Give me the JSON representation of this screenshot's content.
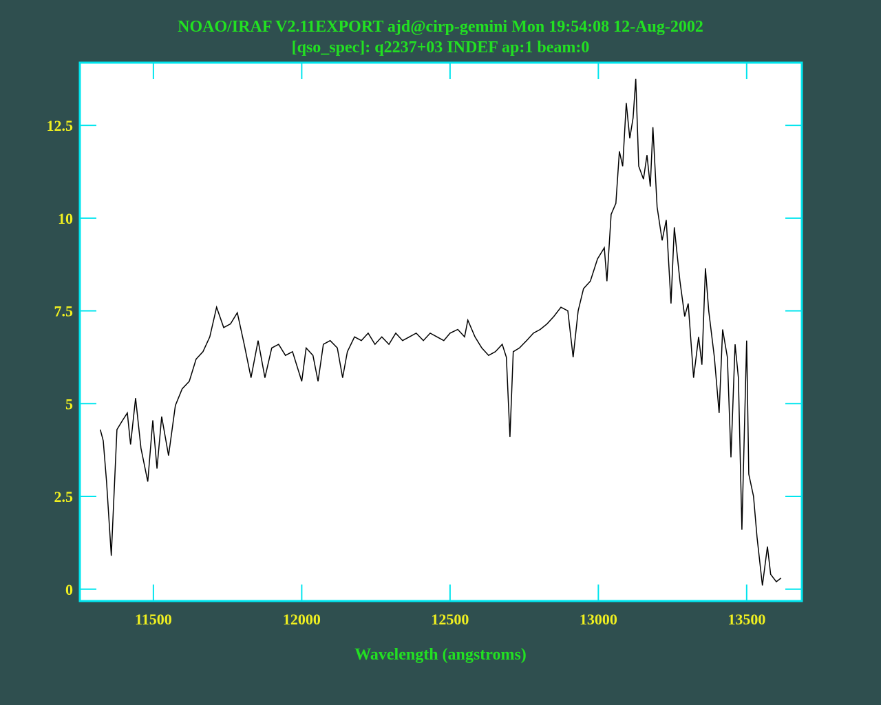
{
  "chart_data": {
    "type": "line",
    "title": "NOAO/IRAF V2.11EXPORT ajd@cirp-gemini Mon 19:54:08 12-Aug-2002",
    "subtitle": "[qso_spec]: q2237+03 INDEF ap:1 beam:0",
    "xlabel": "Wavelength (angstroms)",
    "color": "#000000",
    "xlim": [
      11252,
      13686
    ],
    "ylim": [
      -0.32,
      14.19
    ],
    "xticks": [
      11500,
      12000,
      12500,
      13000,
      13500
    ],
    "yticks": [
      0,
      2.5,
      5,
      7.5,
      10,
      12.5
    ],
    "x": [
      11321,
      11331,
      11342,
      11358,
      11365,
      11377,
      11396,
      11412,
      11423,
      11440,
      11458,
      11481,
      11498,
      11512,
      11528,
      11551,
      11574,
      11597,
      11621,
      11644,
      11667,
      11690,
      11713,
      11737,
      11760,
      11783,
      11806,
      11829,
      11853,
      11876,
      11899,
      11922,
      11945,
      11969,
      12000,
      12015,
      12038,
      12055,
      12073,
      12096,
      12120,
      12138,
      12154,
      12178,
      12201,
      12224,
      12247,
      12270,
      12294,
      12317,
      12340,
      12363,
      12386,
      12410,
      12433,
      12456,
      12479,
      12500,
      12526,
      12549,
      12560,
      12584,
      12607,
      12630,
      12653,
      12676,
      12690,
      12702,
      12713,
      12734,
      12758,
      12781,
      12804,
      12827,
      12850,
      12874,
      12897,
      12915,
      12932,
      12950,
      12973,
      12997,
      13020,
      13029,
      13043,
      13059,
      13071,
      13082,
      13094,
      13106,
      13117,
      13126,
      13136,
      13152,
      13164,
      13175,
      13184,
      13198,
      13215,
      13229,
      13245,
      13256,
      13275,
      13291,
      13303,
      13321,
      13338,
      13349,
      13361,
      13372,
      13391,
      13407,
      13419,
      13435,
      13447,
      13461,
      13472,
      13484,
      13500,
      13507,
      13523,
      13535,
      13553,
      13570,
      13581,
      13600,
      13616
    ],
    "values": [
      4.3,
      4.0,
      2.9,
      0.9,
      2.15,
      4.3,
      4.55,
      4.75,
      3.9,
      5.15,
      3.8,
      2.9,
      4.55,
      3.25,
      4.65,
      3.6,
      4.95,
      5.4,
      5.6,
      6.2,
      6.4,
      6.8,
      7.6,
      7.05,
      7.15,
      7.45,
      6.6,
      5.7,
      6.7,
      5.7,
      6.5,
      6.6,
      6.3,
      6.4,
      5.6,
      6.5,
      6.3,
      5.6,
      6.6,
      6.7,
      6.5,
      5.7,
      6.4,
      6.8,
      6.7,
      6.9,
      6.6,
      6.8,
      6.6,
      6.9,
      6.7,
      6.8,
      6.9,
      6.7,
      6.9,
      6.8,
      6.7,
      6.9,
      7.0,
      6.8,
      7.25,
      6.8,
      6.5,
      6.3,
      6.4,
      6.6,
      6.25,
      4.1,
      6.4,
      6.5,
      6.7,
      6.9,
      7.0,
      7.15,
      7.35,
      7.6,
      7.5,
      6.25,
      7.5,
      8.1,
      8.3,
      8.9,
      9.2,
      8.3,
      10.1,
      10.4,
      11.8,
      11.4,
      13.1,
      12.15,
      12.7,
      13.75,
      11.4,
      11.05,
      11.7,
      10.85,
      12.45,
      10.3,
      9.4,
      9.95,
      7.7,
      9.75,
      8.3,
      7.35,
      7.7,
      5.7,
      6.8,
      6.05,
      8.65,
      7.5,
      6.25,
      4.75,
      7.0,
      6.25,
      3.55,
      6.6,
      5.7,
      1.6,
      6.7,
      3.1,
      2.5,
      1.4,
      0.1,
      1.15,
      0.4,
      0.2,
      0.3
    ]
  }
}
